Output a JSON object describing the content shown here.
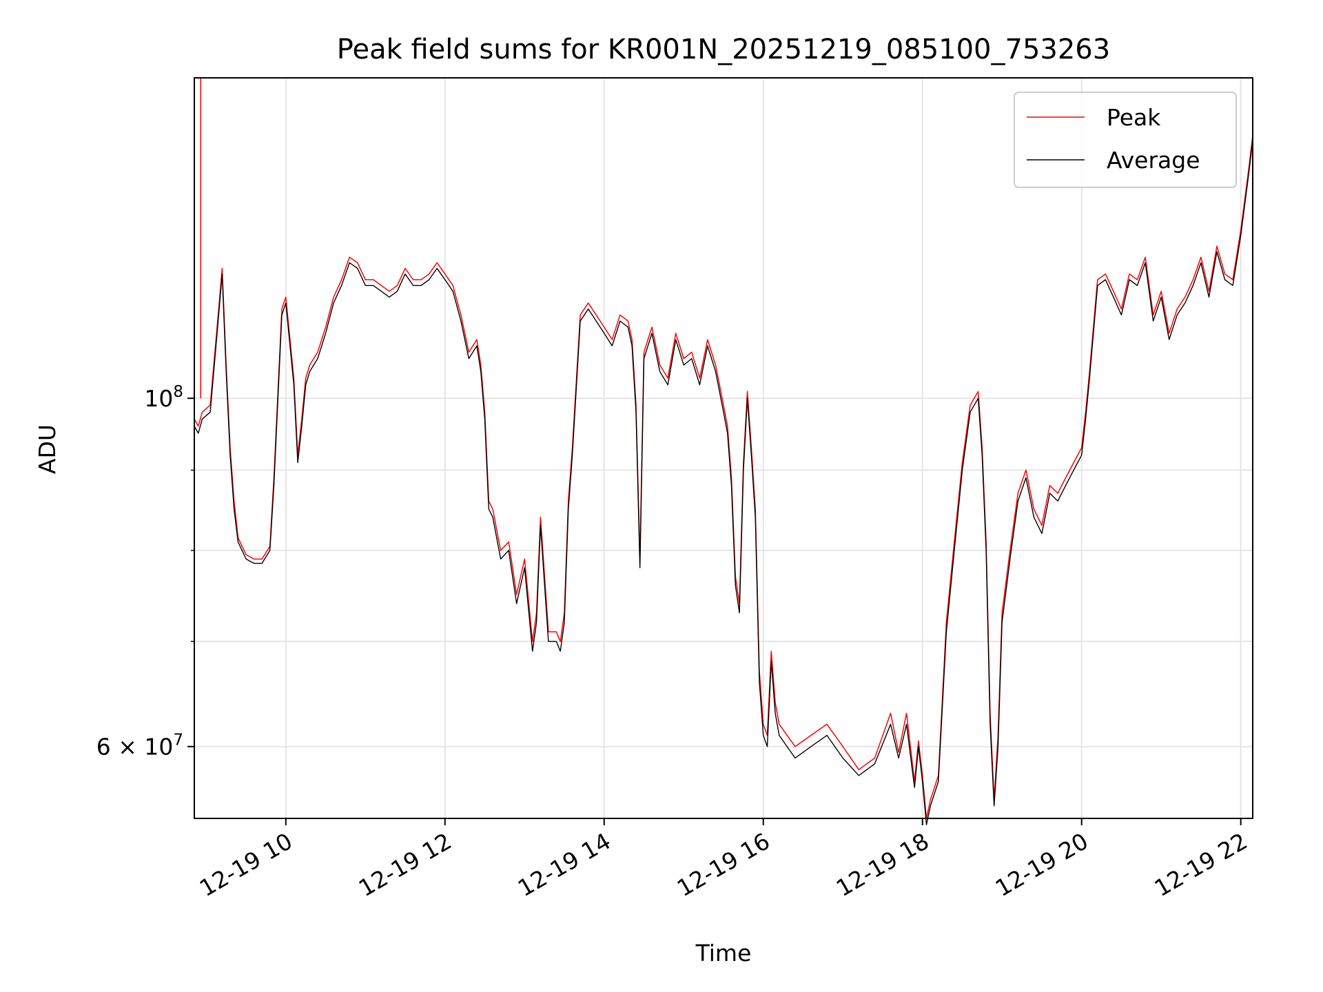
{
  "chart_data": {
    "type": "line",
    "title": "Peak field sums for KR001N_20251219_085100_753263",
    "xlabel": "Time",
    "ylabel": "ADU",
    "y_scale": "log",
    "xlim": [
      "12-19 08:51",
      "12-19 22:09"
    ],
    "ylim": [
      54000000,
      160000000
    ],
    "grid": true,
    "legend_position": "top-right",
    "x_ticks": [
      "12-19 10",
      "12-19 12",
      "12-19 14",
      "12-19 16",
      "12-19 18",
      "12-19 20",
      "12-19 22"
    ],
    "x_tick_hours": [
      10,
      12,
      14,
      16,
      18,
      20,
      22
    ],
    "y_ticks": [
      {
        "label_base": "10",
        "label_exp": "8",
        "value": 100000000
      },
      {
        "label_base": "6 × 10",
        "label_exp": "7",
        "value": 60000000
      }
    ],
    "y_minor_ticks": [
      70000000,
      80000000,
      90000000
    ],
    "series": [
      {
        "name": "Peak",
        "color": "#ff0000"
      },
      {
        "name": "Average",
        "color": "#000000"
      }
    ],
    "x_hours": [
      8.85,
      8.9,
      8.95,
      9.05,
      9.15,
      9.2,
      9.25,
      9.3,
      9.35,
      9.4,
      9.5,
      9.6,
      9.7,
      9.8,
      9.85,
      9.95,
      10.0,
      10.1,
      10.15,
      10.2,
      10.25,
      10.3,
      10.4,
      10.5,
      10.6,
      10.7,
      10.8,
      10.9,
      11.0,
      11.1,
      11.2,
      11.3,
      11.4,
      11.5,
      11.6,
      11.7,
      11.8,
      11.9,
      12.0,
      12.1,
      12.2,
      12.3,
      12.4,
      12.45,
      12.5,
      12.55,
      12.6,
      12.7,
      12.8,
      12.9,
      13.0,
      13.1,
      13.15,
      13.2,
      13.3,
      13.4,
      13.45,
      13.5,
      13.55,
      13.6,
      13.7,
      13.8,
      13.9,
      14.0,
      14.1,
      14.2,
      14.3,
      14.35,
      14.4,
      14.45,
      14.5,
      14.6,
      14.7,
      14.8,
      14.9,
      15.0,
      15.1,
      15.2,
      15.3,
      15.4,
      15.5,
      15.55,
      15.6,
      15.65,
      15.7,
      15.75,
      15.8,
      15.85,
      15.9,
      15.95,
      16.0,
      16.05,
      16.1,
      16.15,
      16.2,
      16.4,
      16.6,
      16.8,
      17.0,
      17.2,
      17.4,
      17.6,
      17.7,
      17.8,
      17.9,
      17.95,
      18.0,
      18.05,
      18.1,
      18.2,
      18.3,
      18.4,
      18.5,
      18.6,
      18.7,
      18.75,
      18.8,
      18.85,
      18.9,
      18.95,
      19.0,
      19.1,
      19.2,
      19.3,
      19.4,
      19.5,
      19.6,
      19.7,
      19.8,
      19.9,
      20.0,
      20.05,
      20.1,
      20.2,
      20.3,
      20.4,
      20.5,
      20.6,
      20.7,
      20.8,
      20.9,
      21.0,
      21.1,
      21.2,
      21.3,
      21.4,
      21.5,
      21.6,
      21.7,
      21.8,
      21.9,
      22.0,
      22.1,
      22.15
    ],
    "average": [
      96000000,
      95000000,
      97000000,
      98000000,
      112000000,
      120000000,
      104000000,
      92000000,
      85000000,
      81000000,
      79000000,
      78500000,
      78500000,
      80000000,
      88000000,
      113000000,
      115000000,
      102000000,
      91000000,
      96000000,
      102000000,
      104000000,
      106000000,
      110000000,
      115000000,
      118000000,
      122000000,
      121000000,
      118000000,
      118000000,
      117000000,
      116000000,
      117000000,
      120000000,
      118000000,
      118000000,
      119000000,
      121000000,
      119000000,
      117000000,
      112000000,
      106000000,
      108000000,
      104000000,
      97000000,
      85000000,
      84000000,
      79000000,
      80000000,
      74000000,
      78000000,
      69000000,
      72000000,
      83000000,
      70000000,
      70000000,
      69000000,
      72000000,
      85000000,
      92000000,
      112000000,
      114000000,
      112000000,
      110000000,
      108000000,
      112000000,
      111000000,
      108000000,
      98000000,
      78000000,
      106000000,
      110000000,
      104000000,
      102000000,
      109000000,
      105000000,
      106000000,
      102000000,
      108000000,
      104000000,
      98000000,
      95000000,
      88000000,
      76000000,
      73000000,
      90000000,
      100000000,
      92000000,
      84000000,
      66000000,
      61000000,
      60000000,
      68000000,
      63000000,
      61000000,
      59000000,
      60000000,
      61000000,
      59000000,
      57500000,
      58500000,
      62000000,
      59000000,
      62000000,
      56500000,
      60000000,
      57000000,
      53500000,
      55000000,
      57000000,
      71000000,
      80000000,
      90000000,
      98000000,
      100000000,
      92000000,
      80000000,
      62000000,
      55000000,
      60000000,
      72000000,
      79000000,
      86000000,
      89000000,
      84000000,
      82000000,
      87000000,
      86000000,
      88000000,
      90000000,
      92000000,
      97000000,
      103000000,
      118000000,
      119000000,
      116000000,
      113000000,
      119000000,
      118000000,
      122000000,
      112000000,
      116000000,
      109000000,
      113000000,
      115000000,
      118000000,
      122000000,
      116000000,
      124000000,
      119000000,
      118000000,
      127000000,
      139000000,
      146000000
    ],
    "peak": [
      97000000,
      96000000,
      98000000,
      99000000,
      113000000,
      121000000,
      105000000,
      93000000,
      86000000,
      81500000,
      79500000,
      79000000,
      79000000,
      80500000,
      89000000,
      114000000,
      116000000,
      103000000,
      92000000,
      97000000,
      103000000,
      105000000,
      107000000,
      111000000,
      116000000,
      119000000,
      123000000,
      122000000,
      119000000,
      119000000,
      118000000,
      117000000,
      118000000,
      121000000,
      119000000,
      119000000,
      120000000,
      122000000,
      120000000,
      118000000,
      113000000,
      107000000,
      109000000,
      105000000,
      98000000,
      86000000,
      85000000,
      80000000,
      81000000,
      75000000,
      79000000,
      70000000,
      73000000,
      84000000,
      71000000,
      71000000,
      70000000,
      73000000,
      86000000,
      93000000,
      113000000,
      115000000,
      113000000,
      111000000,
      109000000,
      113000000,
      112000000,
      109000000,
      99000000,
      79000000,
      107000000,
      111000000,
      105000000,
      103000000,
      110000000,
      106000000,
      107000000,
      103000000,
      109000000,
      105000000,
      99000000,
      96000000,
      89000000,
      77000000,
      74000000,
      91000000,
      101000000,
      93000000,
      85000000,
      67000000,
      62000000,
      61000000,
      69000000,
      64000000,
      62000000,
      60000000,
      61000000,
      62000000,
      60000000,
      58000000,
      59000000,
      63000000,
      59500000,
      63000000,
      57000000,
      60500000,
      57500000,
      54000000,
      55500000,
      57500000,
      72000000,
      81000000,
      91000000,
      99000000,
      101000000,
      93000000,
      81000000,
      63000000,
      55500000,
      61000000,
      73000000,
      80000000,
      87000000,
      90000000,
      85000000,
      83000000,
      88000000,
      87000000,
      89000000,
      91000000,
      93000000,
      98000000,
      104000000,
      119000000,
      120000000,
      117000000,
      114000000,
      120000000,
      119000000,
      123000000,
      113000000,
      117000000,
      110000000,
      114000000,
      116000000,
      119000000,
      123000000,
      117000000,
      125000000,
      120000000,
      119000000,
      128000000,
      140000000,
      147000000
    ],
    "peak_spike": {
      "x_hours": 8.93,
      "value": 160000000
    }
  }
}
